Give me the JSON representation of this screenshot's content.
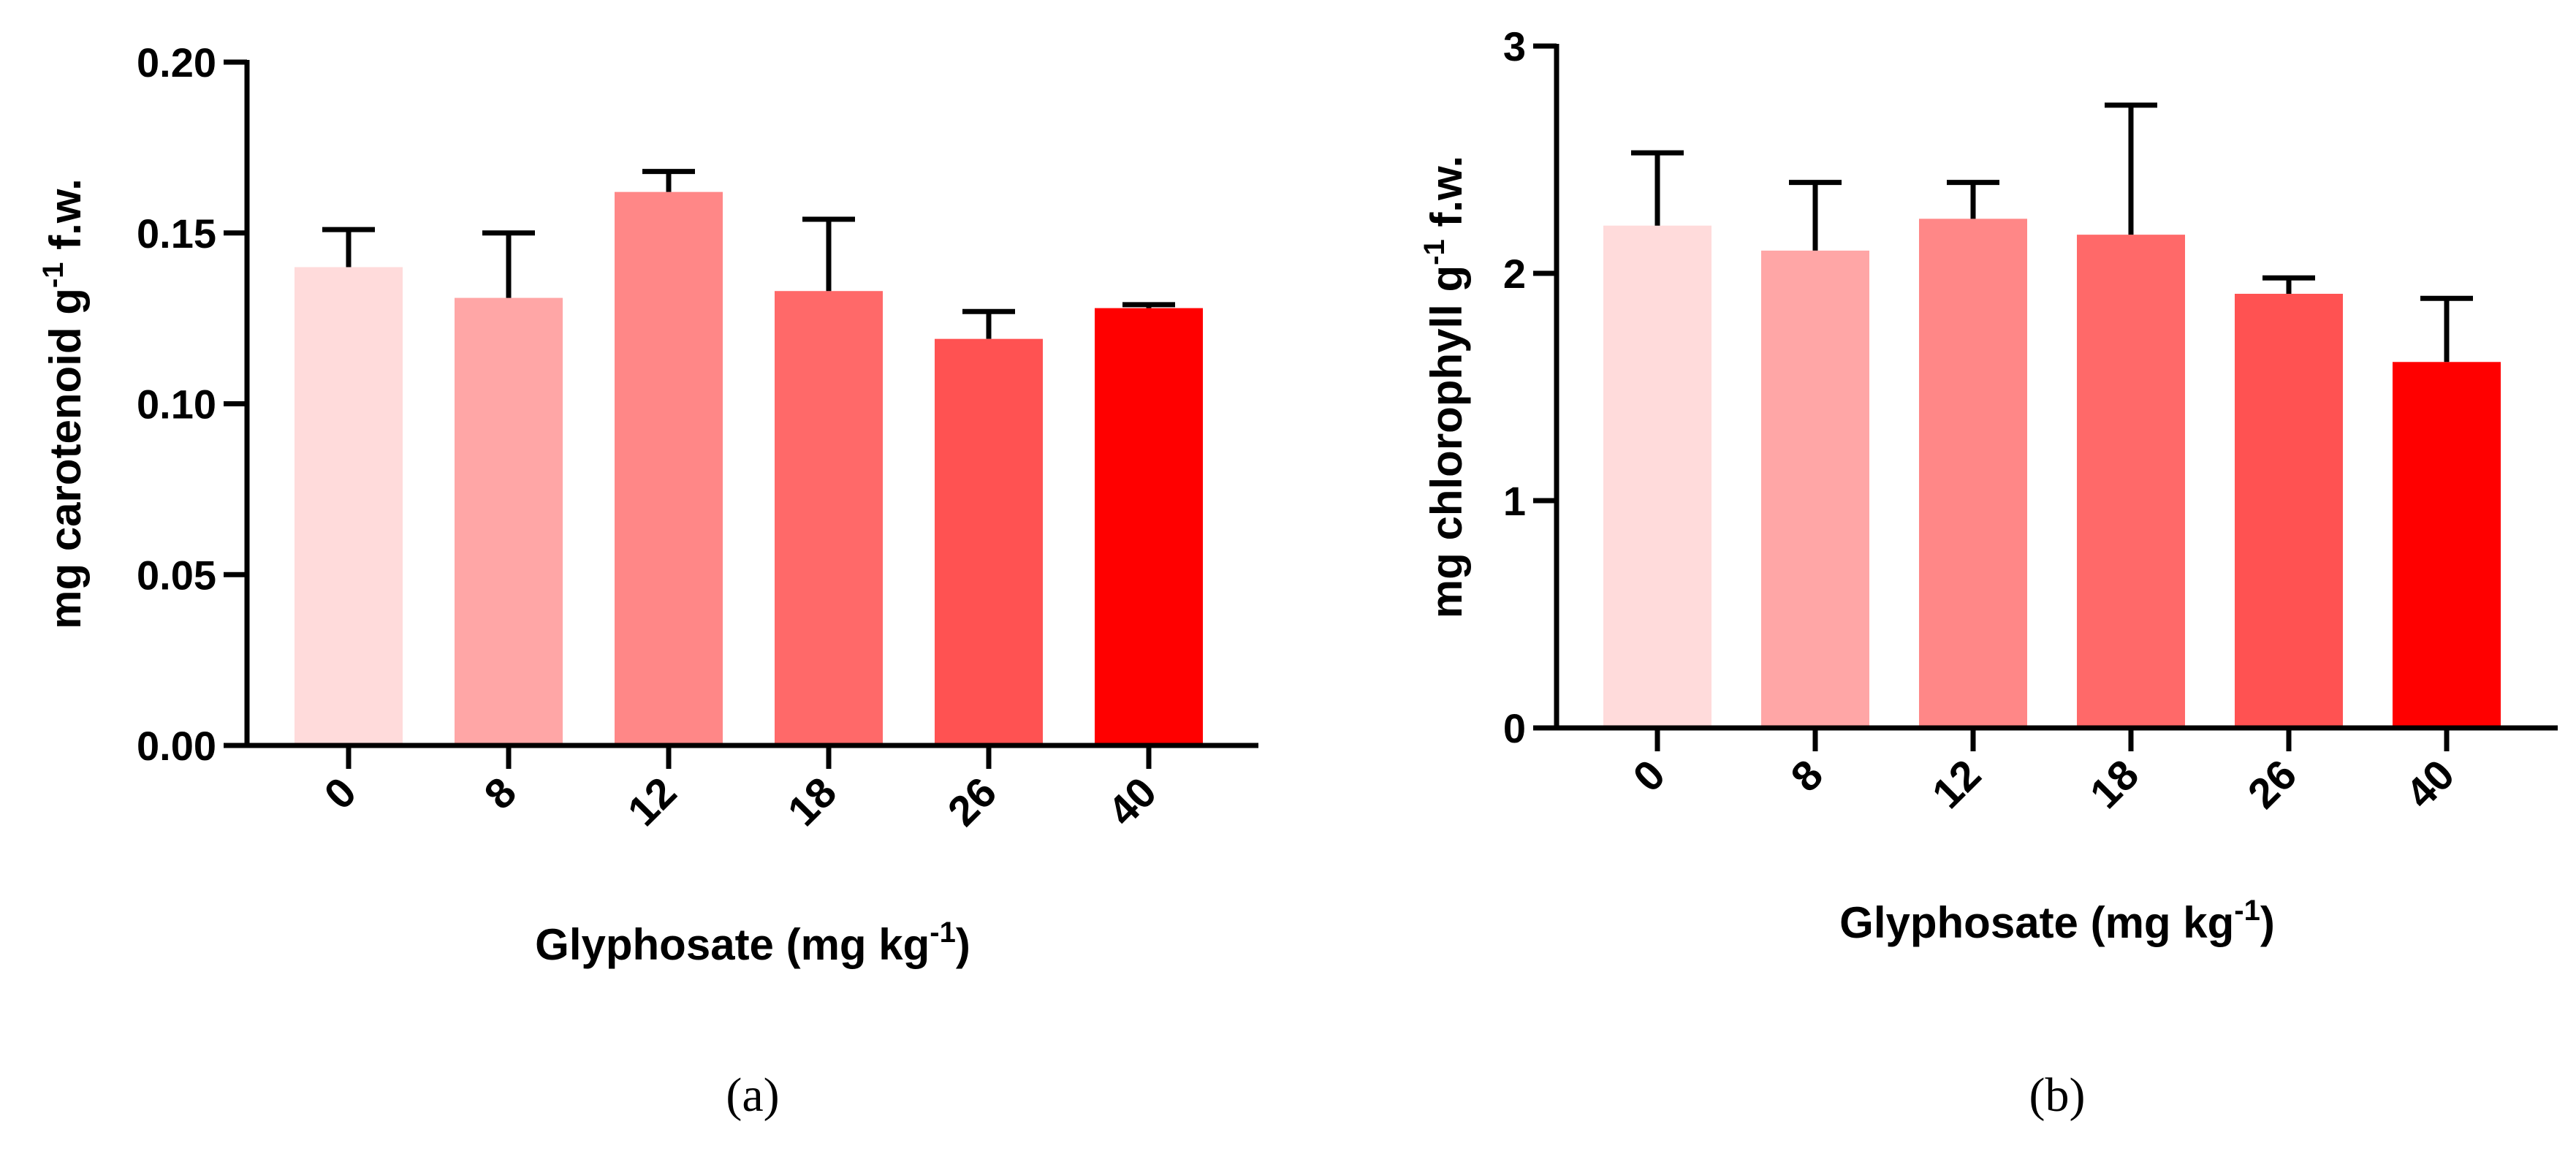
{
  "colors": [
    "#ffdbdb",
    "#ffa6a6",
    "#ff8787",
    "#ff6969",
    "#ff5252",
    "#ff0000"
  ],
  "chart_data": [
    {
      "type": "bar",
      "panel_label": "(a)",
      "categories": [
        "0",
        "8",
        "12",
        "18",
        "26",
        "40"
      ],
      "values": [
        0.14,
        0.131,
        0.162,
        0.133,
        0.119,
        0.128
      ],
      "errors": [
        0.011,
        0.019,
        0.006,
        0.021,
        0.008,
        0.001
      ],
      "ylabel": "mg carotenoid g",
      "ylabel_sup": "-1",
      "ylabel_tail": " f.w.",
      "xlabel": "Glyphosate (mg kg",
      "xlabel_sup": "-1",
      "xlabel_tail": ")",
      "ylim": [
        0,
        0.2
      ],
      "yticks": [
        0.0,
        0.05,
        0.1,
        0.15,
        0.2
      ],
      "ytick_labels": [
        "0.00",
        "0.05",
        "0.10",
        "0.15",
        "0.20"
      ],
      "grid": false,
      "legend": "none"
    },
    {
      "type": "bar",
      "panel_label": "(b)",
      "categories": [
        "0",
        "8",
        "12",
        "18",
        "26",
        "40"
      ],
      "values": [
        2.21,
        2.1,
        2.24,
        2.17,
        1.91,
        1.61
      ],
      "errors": [
        0.32,
        0.3,
        0.16,
        0.57,
        0.07,
        0.28
      ],
      "ylabel": "mg chlorophyll g",
      "ylabel_sup": "-1",
      "ylabel_tail": " f.w.",
      "xlabel": "Glyphosate (mg kg",
      "xlabel_sup": "-1",
      "xlabel_tail": ")",
      "ylim": [
        0,
        3
      ],
      "yticks": [
        0,
        1,
        2,
        3
      ],
      "ytick_labels": [
        "0",
        "1",
        "2",
        "3"
      ],
      "grid": false,
      "legend": "none"
    }
  ]
}
